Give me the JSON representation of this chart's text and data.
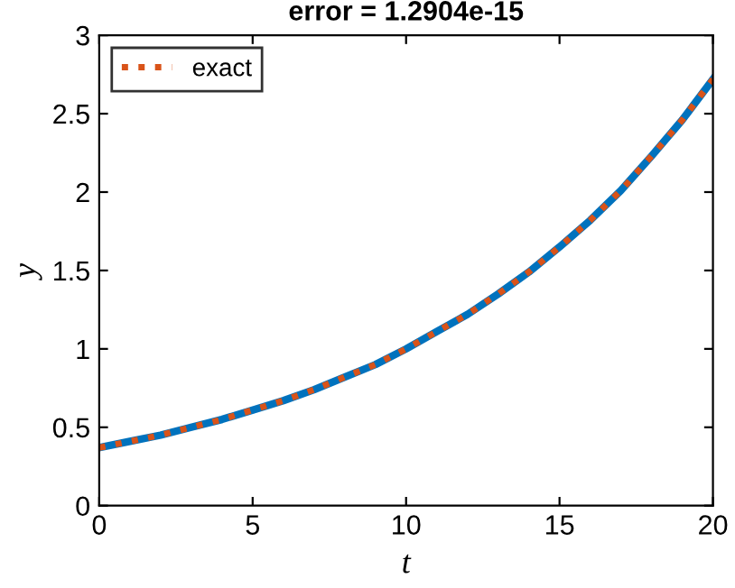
{
  "chart_data": {
    "type": "line",
    "title": "error = 1.2904e-15",
    "xlabel": "t",
    "ylabel": "y",
    "x": [
      0,
      1,
      2,
      3,
      4,
      5,
      6,
      7,
      8,
      9,
      10,
      11,
      12,
      13,
      14,
      15,
      16,
      17,
      18,
      19,
      20
    ],
    "series": [
      {
        "color": "#0072bd",
        "line_style": "solid",
        "values": [
          0.37,
          0.41,
          0.45,
          0.5,
          0.55,
          0.61,
          0.67,
          0.74,
          0.82,
          0.9,
          1.0,
          1.11,
          1.22,
          1.35,
          1.49,
          1.65,
          1.82,
          2.01,
          2.23,
          2.46,
          2.72
        ]
      },
      {
        "name": "exact",
        "color": "#d95319",
        "line_style": "dotted",
        "values": [
          0.37,
          0.41,
          0.45,
          0.5,
          0.55,
          0.61,
          0.67,
          0.74,
          0.82,
          0.9,
          1.0,
          1.11,
          1.22,
          1.35,
          1.49,
          1.65,
          1.82,
          2.01,
          2.23,
          2.46,
          2.72
        ]
      }
    ],
    "xlim": [
      0,
      20
    ],
    "ylim": [
      0,
      3
    ],
    "xticks": [
      0,
      5,
      10,
      15,
      20
    ],
    "yticks": [
      0,
      0.5,
      1,
      1.5,
      2,
      2.5,
      3
    ],
    "legend": "top left",
    "grid": false,
    "marker": "none"
  }
}
